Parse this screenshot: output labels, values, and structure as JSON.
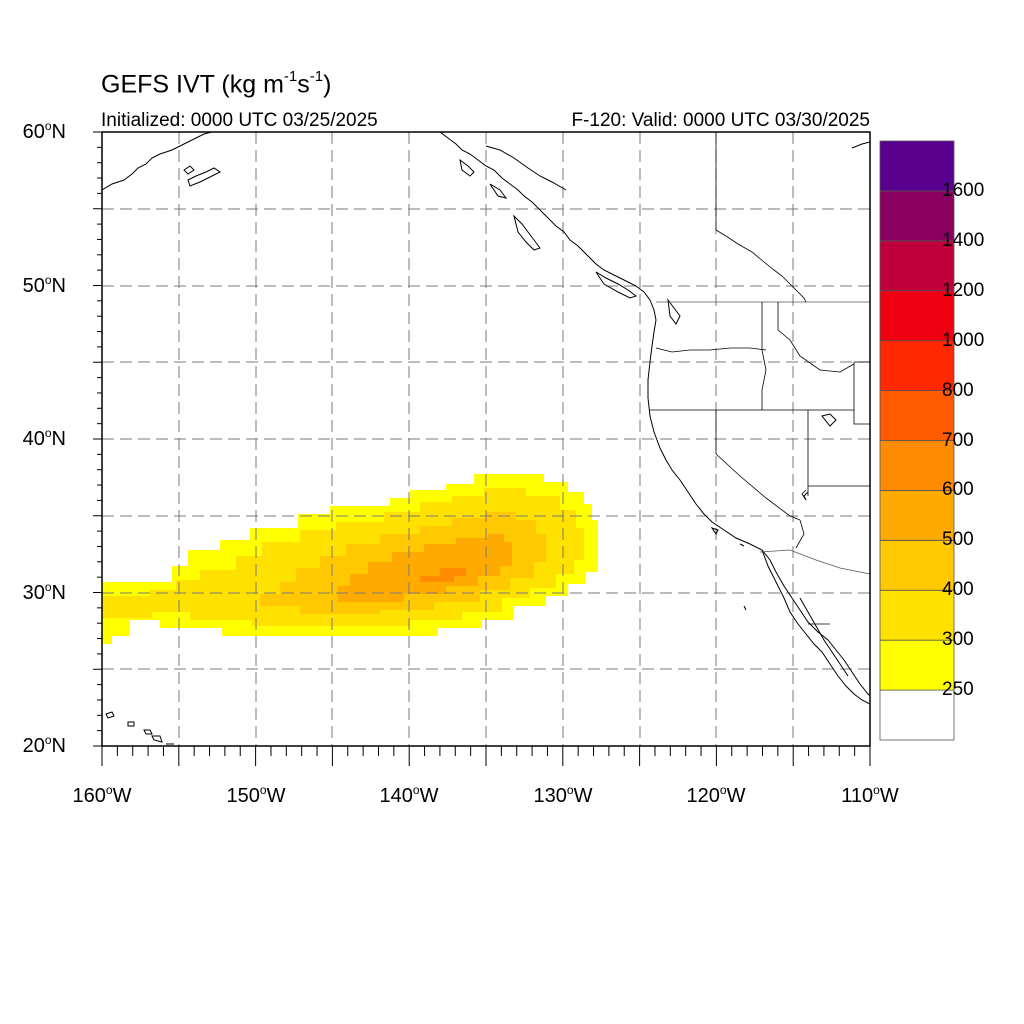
{
  "header": {
    "title_main": "GEFS IVT (kg m",
    "title_exp1": "-1",
    "title_mid": "s",
    "title_exp2": "-1",
    "title_end": ")",
    "initialized": "Initialized: 0000 UTC 03/25/2025",
    "valid": "F-120: Valid: 0000 UTC 03/30/2025"
  },
  "map": {
    "lon_range": [
      -160,
      -110
    ],
    "lat_range": [
      20,
      60
    ],
    "lat_labels": [
      {
        "value": 60,
        "text": "60",
        "hemi": "N"
      },
      {
        "value": 50,
        "text": "50",
        "hemi": "N"
      },
      {
        "value": 40,
        "text": "40",
        "hemi": "N"
      },
      {
        "value": 30,
        "text": "30",
        "hemi": "N"
      },
      {
        "value": 20,
        "text": "20",
        "hemi": "N"
      }
    ],
    "lon_labels": [
      {
        "value": -160,
        "text": "160",
        "hemi": "W"
      },
      {
        "value": -150,
        "text": "150",
        "hemi": "W"
      },
      {
        "value": -140,
        "text": "140",
        "hemi": "W"
      },
      {
        "value": -130,
        "text": "130",
        "hemi": "W"
      },
      {
        "value": -120,
        "text": "120",
        "hemi": "W"
      },
      {
        "value": -110,
        "text": "110",
        "hemi": "W"
      }
    ],
    "grid_lons": [
      -155,
      -150,
      -145,
      -140,
      -135,
      -130,
      -125,
      -120,
      -115
    ],
    "grid_lats": [
      55,
      50,
      45,
      40,
      35,
      30,
      25
    ]
  },
  "colorbar": {
    "levels": [
      "250",
      "300",
      "400",
      "500",
      "600",
      "700",
      "800",
      "1000",
      "1200",
      "1400",
      "1600"
    ],
    "colors": [
      "#ffffff",
      "#ffff00",
      "#ffe100",
      "#ffc800",
      "#ffaa00",
      "#ff8c00",
      "#ff5a00",
      "#ff2800",
      "#ee0010",
      "#c0003c",
      "#8a0060",
      "#5a0090"
    ]
  }
}
